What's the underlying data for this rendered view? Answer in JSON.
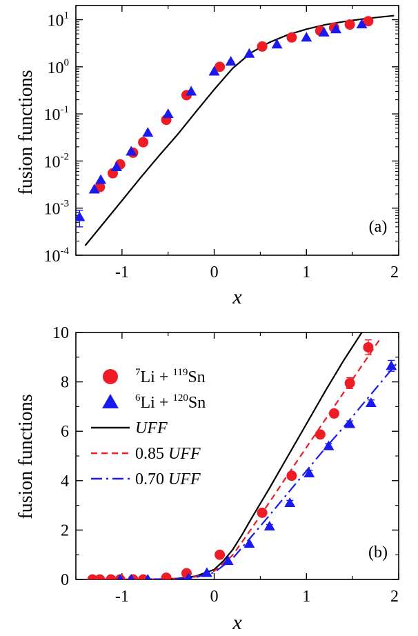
{
  "chart_data": [
    {
      "type": "scatter",
      "panel_label": "(a)",
      "xlabel": "x",
      "ylabel": "fusion functions",
      "xlim": [
        -1.5,
        2
      ],
      "ylim": [
        0.0001,
        20
      ],
      "yscale": "log",
      "x_ticks": [
        "-1",
        "0",
        "1",
        "2"
      ],
      "x_tick_values": [
        -1,
        0,
        1,
        2
      ],
      "y_ticks": [
        {
          "base": "10",
          "exp": "-4",
          "value": 0.0001
        },
        {
          "base": "10",
          "exp": "-3",
          "value": 0.001
        },
        {
          "base": "10",
          "exp": "-2",
          "value": 0.01
        },
        {
          "base": "10",
          "exp": "-1",
          "value": 0.1
        },
        {
          "base": "10",
          "exp": "0",
          "value": 1
        },
        {
          "base": "10",
          "exp": "1",
          "value": 10
        }
      ],
      "series": [
        {
          "name": "7Li + 119Sn",
          "marker": "circle",
          "color": "#ee1c25",
          "x": [
            -1.24,
            -1.1,
            -1.02,
            -0.88,
            -0.77,
            -0.52,
            -0.3,
            0.06,
            0.52,
            0.84,
            1.15,
            1.3,
            1.47,
            1.67
          ],
          "y": [
            0.0028,
            0.0055,
            0.0085,
            0.015,
            0.025,
            0.075,
            0.25,
            1.0,
            2.7,
            4.2,
            5.8,
            6.8,
            7.9,
            9.3
          ]
        },
        {
          "name": "6Li + 120Sn",
          "marker": "triangle",
          "color": "#1a1aee",
          "x": [
            -1.46,
            -1.3,
            -1.23,
            -1.06,
            -0.9,
            -0.72,
            -0.5,
            -0.25,
            0.0,
            0.18,
            0.38,
            0.68,
            1.0,
            1.19,
            1.32,
            1.6
          ],
          "y": [
            0.00065,
            0.0025,
            0.004,
            0.0075,
            0.016,
            0.04,
            0.1,
            0.3,
            0.8,
            1.3,
            1.9,
            3.0,
            4.2,
            5.4,
            6.3,
            8.0
          ],
          "yerr": [
            0.00025,
            0,
            0,
            0,
            0,
            0,
            0,
            0,
            0,
            0,
            0,
            0,
            0,
            0,
            0,
            0
          ]
        },
        {
          "name": "UFF",
          "line": "solid",
          "color": "#000000",
          "x": [
            -1.4,
            -1.2,
            -1.0,
            -0.8,
            -0.6,
            -0.4,
            -0.2,
            0.0,
            0.2,
            0.4,
            0.6,
            0.8,
            1.0,
            1.2,
            1.4,
            1.6,
            1.8,
            1.95
          ],
          "y": [
            0.00016,
            0.00048,
            0.00145,
            0.0044,
            0.0128,
            0.036,
            0.11,
            0.33,
            0.93,
            2.0,
            3.3,
            4.8,
            6.3,
            7.8,
            9.1,
            10.3,
            11.4,
            12.2
          ]
        }
      ]
    },
    {
      "type": "scatter",
      "panel_label": "(b)",
      "xlabel": "x",
      "ylabel": "fusion functions",
      "xlim": [
        -1.5,
        2
      ],
      "ylim": [
        0,
        10
      ],
      "x_ticks": [
        "-1",
        "0",
        "1",
        "2"
      ],
      "x_tick_values": [
        -1,
        0,
        1,
        2
      ],
      "y_ticks": [
        "0",
        "2",
        "4",
        "6",
        "8",
        "10"
      ],
      "y_tick_values": [
        0,
        2,
        4,
        6,
        8,
        10
      ],
      "legend": {
        "position": "top-left",
        "entries": [
          {
            "kind": "circle",
            "color": "#ee1c25",
            "pre": "7",
            "a": "Li + ",
            "sup": "119",
            "b": "Sn"
          },
          {
            "kind": "triangle",
            "color": "#1a1aee",
            "pre": "6",
            "a": "Li + ",
            "sup": "120",
            "b": "Sn"
          },
          {
            "kind": "solid",
            "color": "#000000",
            "num": "",
            "label": "UFF"
          },
          {
            "kind": "dashed",
            "color": "#ee1c25",
            "num": "0.85 ",
            "label": "UFF"
          },
          {
            "kind": "dashdot",
            "color": "#1a1aee",
            "num": "0.70 ",
            "label": "UFF"
          }
        ]
      },
      "series": [
        {
          "name": "7Li + 119Sn",
          "marker": "circle",
          "color": "#ee1c25",
          "x": [
            -1.32,
            -1.24,
            -1.12,
            -1.02,
            -0.88,
            -0.77,
            -0.52,
            -0.3,
            0.06,
            0.52,
            0.84,
            1.15,
            1.3,
            1.47,
            1.67
          ],
          "y": [
            0.0,
            0.0,
            0.0,
            0.0,
            0.0,
            0.0,
            0.07,
            0.25,
            1.0,
            2.7,
            4.2,
            5.87,
            6.72,
            7.95,
            9.4
          ],
          "yerr": [
            0,
            0,
            0,
            0,
            0,
            0,
            0,
            0,
            0,
            0,
            0.08,
            0.1,
            0.15,
            0.22,
            0.3
          ]
        },
        {
          "name": "6Li + 120Sn",
          "marker": "triangle",
          "color": "#1a1aee",
          "x": [
            -1.02,
            -0.9,
            -0.72,
            -0.28,
            -0.08,
            0.15,
            0.38,
            0.6,
            0.82,
            1.03,
            1.24,
            1.47,
            1.7,
            1.92
          ],
          "y": [
            0.0,
            0.0,
            0.0,
            0.05,
            0.27,
            0.75,
            1.45,
            2.15,
            3.1,
            4.3,
            5.4,
            6.3,
            7.15,
            8.65
          ],
          "yerr": [
            0,
            0,
            0,
            0,
            0,
            0,
            0,
            0.07,
            0.1,
            0.12,
            0.1,
            0.12,
            0.12,
            0.22
          ]
        },
        {
          "name": "UFF",
          "line": "solid",
          "color": "#000000",
          "x": [
            -1.35,
            -1.0,
            -0.8,
            -0.6,
            -0.4,
            -0.2,
            0.0,
            0.1,
            0.2,
            0.3,
            0.4,
            0.6,
            0.8,
            1.0,
            1.2,
            1.4,
            1.6
          ],
          "y": [
            0.0,
            0.0,
            0.005,
            0.015,
            0.04,
            0.13,
            0.4,
            0.75,
            1.2,
            1.8,
            2.45,
            3.7,
            5.0,
            6.3,
            7.6,
            8.85,
            10.0
          ]
        },
        {
          "name": "0.85 UFF",
          "line": "dashed",
          "color": "#ee1c25",
          "x": [
            -1.35,
            -1.0,
            -0.8,
            -0.6,
            -0.4,
            -0.2,
            0.0,
            0.2,
            0.4,
            0.6,
            0.8,
            1.0,
            1.2,
            1.4,
            1.6,
            1.8
          ],
          "y": [
            0.0,
            0.0,
            0.005,
            0.013,
            0.035,
            0.11,
            0.34,
            0.98,
            2.04,
            3.13,
            4.25,
            5.35,
            6.45,
            7.55,
            8.65,
            9.75
          ]
        },
        {
          "name": "0.70 UFF",
          "line": "dashdot",
          "color": "#1a1aee",
          "x": [
            -1.35,
            -1.0,
            -0.8,
            -0.6,
            -0.4,
            -0.2,
            0.0,
            0.2,
            0.4,
            0.6,
            0.8,
            1.0,
            1.2,
            1.4,
            1.6,
            1.8,
            2.0
          ],
          "y": [
            0.0,
            0.0,
            0.004,
            0.01,
            0.03,
            0.09,
            0.28,
            0.85,
            1.72,
            2.6,
            3.5,
            4.4,
            5.3,
            6.15,
            7.05,
            7.95,
            8.85
          ]
        }
      ]
    }
  ]
}
